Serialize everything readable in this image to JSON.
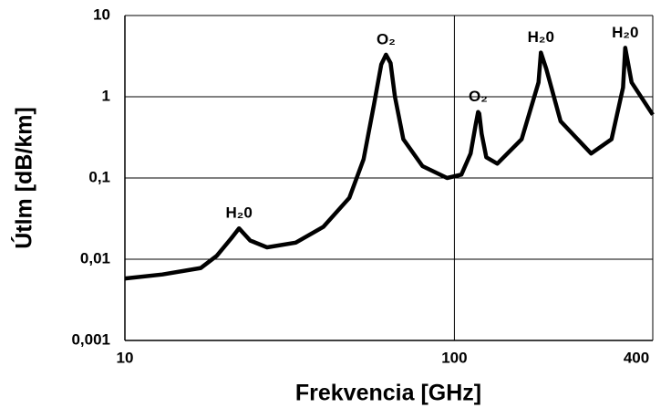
{
  "chart_data": {
    "type": "line",
    "x_label": "Frekvencia [GHz]",
    "y_label": "Útlm [dB/km]",
    "x_log": true,
    "y_log": true,
    "grid": true,
    "color": "#000000",
    "xlim": [
      10,
      400
    ],
    "ylim": [
      0.001,
      10
    ],
    "xticks": [
      10,
      100,
      400
    ],
    "yticks": [
      {
        "value": 0.001,
        "label": "0,001"
      },
      {
        "value": 0.01,
        "label": "0,01"
      },
      {
        "value": 0.1,
        "label": "0,1"
      },
      1,
      10
    ],
    "x": [
      10,
      13,
      17,
      19,
      21,
      22.2,
      24,
      27,
      33,
      40,
      48,
      53,
      57,
      60,
      62,
      64,
      66,
      70,
      80,
      95,
      105,
      112,
      116,
      118,
      119,
      121,
      125,
      135,
      160,
      180,
      183,
      190,
      210,
      260,
      300,
      325,
      330,
      345,
      400
    ],
    "values": [
      0.0058,
      0.0065,
      0.0078,
      0.011,
      0.018,
      0.024,
      0.017,
      0.014,
      0.016,
      0.025,
      0.057,
      0.17,
      0.8,
      2.5,
      3.3,
      2.6,
      1.0,
      0.3,
      0.14,
      0.1,
      0.11,
      0.2,
      0.45,
      0.65,
      0.62,
      0.35,
      0.18,
      0.15,
      0.3,
      1.5,
      3.5,
      2.2,
      0.5,
      0.2,
      0.3,
      1.3,
      4,
      1.5,
      0.6
    ],
    "annotations": [
      {
        "text": "H₂0",
        "x": 22.2,
        "y": 0.024
      },
      {
        "text": "O₂",
        "x": 62,
        "y": 3.3
      },
      {
        "text": "O₂",
        "x": 118,
        "y": 0.65
      },
      {
        "text": "H₂0",
        "x": 183,
        "y": 3.5
      },
      {
        "text": "H₂0",
        "x": 330,
        "y": 4
      }
    ]
  }
}
